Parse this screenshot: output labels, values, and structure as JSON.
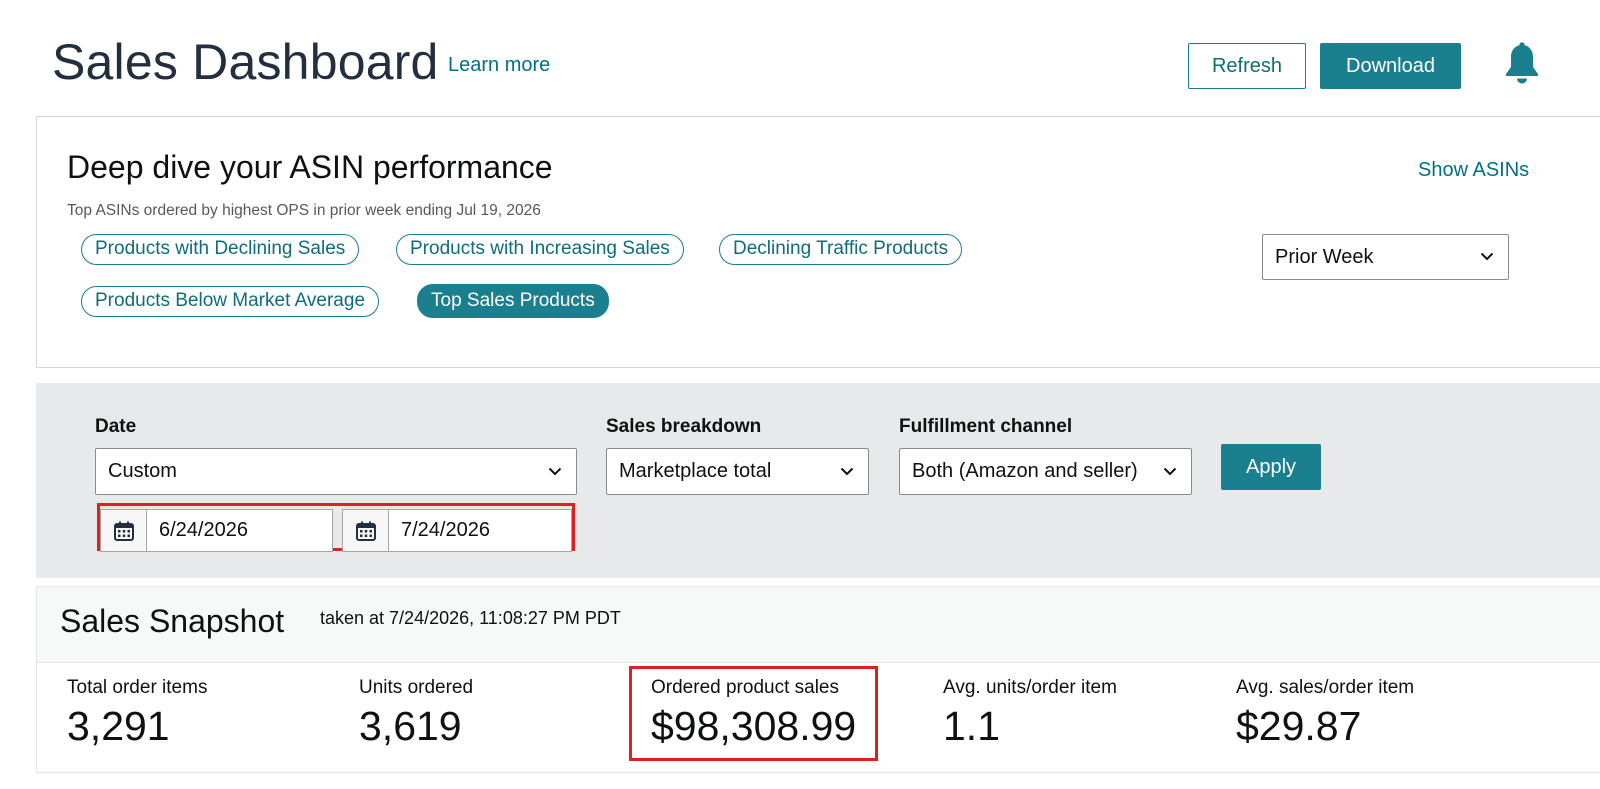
{
  "header": {
    "title": "Sales Dashboard",
    "learn_more": "Learn more",
    "refresh_label": "Refresh",
    "download_label": "Download",
    "bell_icon": "bell-icon"
  },
  "deep_dive": {
    "title": "Deep dive your ASIN performance",
    "subtitle": "Top ASINs ordered by highest OPS in prior week ending Jul 19, 2026",
    "show_asins": "Show ASINs",
    "pills": [
      {
        "label": "Products with Declining Sales",
        "active": false
      },
      {
        "label": "Products with Increasing Sales",
        "active": false
      },
      {
        "label": "Declining Traffic Products",
        "active": false
      },
      {
        "label": "Products Below Market Average",
        "active": false
      },
      {
        "label": "Top Sales Products",
        "active": true
      }
    ],
    "period_select": "Prior Week"
  },
  "filters": {
    "date_label": "Date",
    "date_value": "Custom",
    "start_date": "6/24/2026",
    "end_date": "7/24/2026",
    "breakdown_label": "Sales breakdown",
    "breakdown_value": "Marketplace total",
    "channel_label": "Fulfillment channel",
    "channel_value": "Both (Amazon and seller)",
    "apply_label": "Apply"
  },
  "snapshot": {
    "title": "Sales Snapshot",
    "taken_at": "taken at 7/24/2026, 11:08:27 PM PDT",
    "metrics": [
      {
        "label": "Total order items",
        "value": "3,291"
      },
      {
        "label": "Units ordered",
        "value": "3,619"
      },
      {
        "label": "Ordered product sales",
        "value": "$98,308.99"
      },
      {
        "label": "Avg. units/order item",
        "value": "1.1"
      },
      {
        "label": "Avg. sales/order item",
        "value": "$29.87"
      }
    ]
  },
  "colors": {
    "accent": "#1a7f8e",
    "link": "#007185",
    "highlight": "#e01f1f",
    "filter_band": "#e8e9ea"
  }
}
